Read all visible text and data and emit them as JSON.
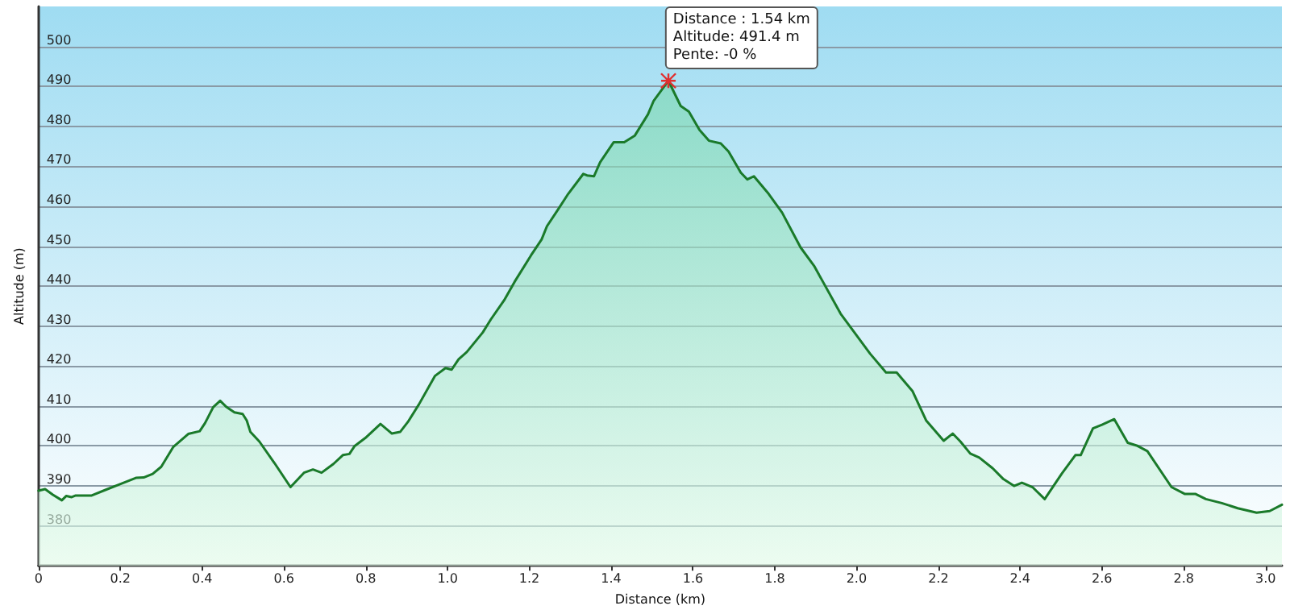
{
  "chart_data": {
    "type": "area",
    "xlabel": "Distance (km)",
    "ylabel": "Altitude (m)",
    "xlim": [
      0,
      3.04
    ],
    "xticks": [
      0,
      {
        "value": 0.2,
        "label": "0.2"
      },
      {
        "value": 0.4,
        "label": "0.4"
      },
      {
        "value": 0.6,
        "label": "0.6"
      },
      {
        "value": 0.8,
        "label": "0.8"
      },
      {
        "value": 1,
        "label": "1.0"
      },
      {
        "value": 1.2,
        "label": "1.2"
      },
      {
        "value": 1.4,
        "label": "1.4"
      },
      {
        "value": 1.6,
        "label": "1.6"
      },
      {
        "value": 1.8,
        "label": "1.8"
      },
      {
        "value": 2,
        "label": "2.0"
      },
      {
        "value": 2.2,
        "label": "2.2"
      },
      {
        "value": 2.4,
        "label": "2.4"
      },
      {
        "value": 2.6,
        "label": "2.6"
      },
      {
        "value": 2.8,
        "label": "2.8"
      },
      {
        "value": 3,
        "label": "3.0"
      }
    ],
    "ylim": [
      370,
      510
    ],
    "yticks": [
      380,
      390,
      400,
      410,
      420,
      430,
      440,
      450,
      460,
      470,
      480,
      490,
      500
    ],
    "grid": "y",
    "marker": "none",
    "line_style": "solid",
    "annotations": [
      {
        "text": "Distance : 1.54 km\nAltitude: 491.4 m\nPente: -0 %",
        "x": 1.54,
        "y": 491.4
      }
    ],
    "series": [
      {
        "color": "#1a7a2a",
        "x": [
          0,
          0.016,
          0.035,
          0.057,
          0.068,
          0.081,
          0.091,
          0.13,
          0.166,
          0.198,
          0.238,
          0.257,
          0.279,
          0.3,
          0.329,
          0.366,
          0.394,
          0.407,
          0.427,
          0.444,
          0.46,
          0.479,
          0.499,
          0.509,
          0.518,
          0.54,
          0.577,
          0.616,
          0.649,
          0.671,
          0.692,
          0.721,
          0.744,
          0.76,
          0.773,
          0.799,
          0.836,
          0.864,
          0.884,
          0.903,
          0.93,
          0.969,
          0.995,
          1.01,
          1.027,
          1.047,
          1.086,
          1.106,
          1.138,
          1.164,
          1.204,
          1.23,
          1.243,
          1.269,
          1.295,
          1.332,
          1.341,
          1.358,
          1.373,
          1.406,
          1.432,
          1.458,
          1.49,
          1.504,
          1.54,
          1.57,
          1.59,
          1.616,
          1.639,
          1.668,
          1.687,
          1.717,
          1.733,
          1.749,
          1.785,
          1.818,
          1.863,
          1.896,
          1.961,
          2.033,
          2.072,
          2.098,
          2.137,
          2.17,
          2.213,
          2.235,
          2.254,
          2.278,
          2.3,
          2.333,
          2.359,
          2.385,
          2.404,
          2.43,
          2.46,
          2.502,
          2.535,
          2.548,
          2.578,
          2.6,
          2.63,
          2.663,
          2.685,
          2.711,
          2.77,
          2.802,
          2.828,
          2.854,
          2.893,
          2.932,
          2.978,
          3.01,
          3.04
        ],
        "values": [
          388.8,
          389.2,
          387.8,
          386.4,
          387.5,
          387.2,
          387.6,
          387.6,
          389.1,
          390.4,
          392,
          392.1,
          393,
          394.8,
          399.7,
          403,
          403.7,
          405.7,
          409.7,
          411.3,
          409.7,
          408.4,
          408,
          406.4,
          403.5,
          401.1,
          395.7,
          389.7,
          393.3,
          394.1,
          393.3,
          395.5,
          397.7,
          398,
          400,
          402,
          405.5,
          403.1,
          403.5,
          406,
          410.4,
          417.5,
          419.5,
          419.1,
          421.7,
          423.5,
          428.4,
          431.7,
          436.4,
          441.1,
          447.7,
          451.7,
          455,
          459,
          463.1,
          468.1,
          467.7,
          467.5,
          471,
          476,
          476,
          477.7,
          483,
          486.4,
          491.4,
          485.1,
          483.7,
          479.1,
          476.4,
          475.7,
          473.7,
          468.4,
          466.7,
          467.5,
          463.1,
          458.4,
          449.7,
          445.1,
          433.1,
          423.1,
          418.4,
          418.4,
          413.7,
          406.4,
          401.3,
          403.1,
          401.1,
          398.1,
          397.1,
          394.4,
          391.7,
          390,
          390.8,
          389.7,
          386.7,
          393.1,
          397.7,
          397.7,
          404.4,
          405.3,
          406.7,
          400.8,
          400.1,
          398.7,
          389.7,
          388,
          388,
          386.7,
          385.7,
          384.4,
          383.3,
          383.7,
          385.3
        ]
      }
    ]
  }
}
